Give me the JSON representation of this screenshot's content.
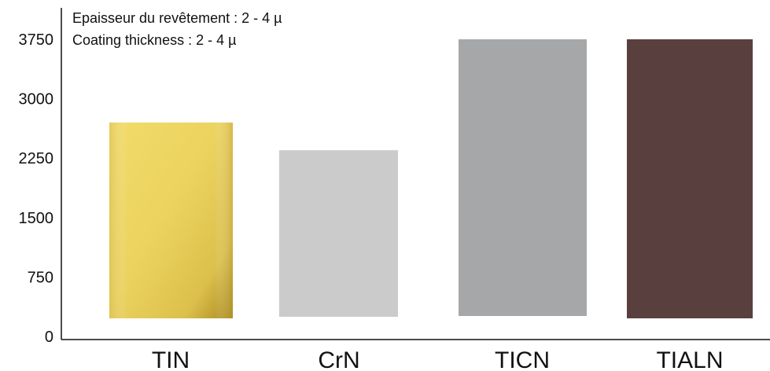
{
  "chart_data": {
    "type": "bar",
    "annotations": [
      "Epaisseur du revêtement : 2 - 4 µ",
      "Coating thickness : 2 - 4 µ"
    ],
    "categories": [
      "TIN",
      "CrN",
      "TICN",
      "TIALN"
    ],
    "values": [
      2700,
      2350,
      3750,
      3750
    ],
    "colors": [
      "#e8cd5a",
      "#cbcbcb",
      "#a6a7a8",
      "#5a3f3f"
    ],
    "y_ticks": [
      "0",
      "750",
      "1500",
      "2250",
      "3000",
      "3750"
    ],
    "y_tick_values": [
      0,
      750,
      1500,
      2250,
      3000,
      3750
    ],
    "ylim": [
      0,
      4100
    ],
    "grid": false,
    "legend": "none",
    "xlabel": "",
    "ylabel": ""
  }
}
